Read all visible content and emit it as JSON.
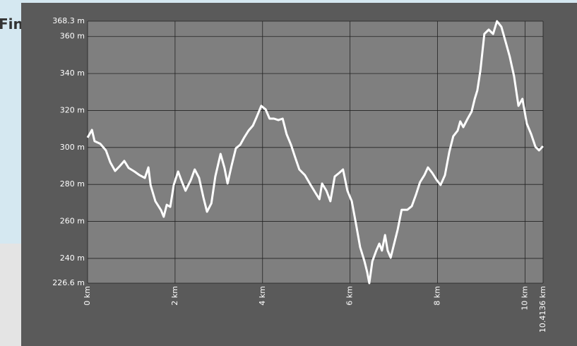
{
  "map_label": "Fin",
  "chart_data": {
    "type": "line",
    "color": "#ffffff",
    "grid": true,
    "x": [
      0,
      0.1,
      0.16,
      0.29,
      0.42,
      0.52,
      0.63,
      0.74,
      0.84,
      0.94,
      1.07,
      1.19,
      1.31,
      1.39,
      1.44,
      1.55,
      1.68,
      1.74,
      1.81,
      1.89,
      1.97,
      2.07,
      2.16,
      2.24,
      2.36,
      2.45,
      2.55,
      2.65,
      2.73,
      2.83,
      2.92,
      3.04,
      3.13,
      3.2,
      3.29,
      3.39,
      3.49,
      3.58,
      3.68,
      3.78,
      3.87,
      3.97,
      4.07,
      4.16,
      4.26,
      4.36,
      4.46,
      4.55,
      4.65,
      4.74,
      4.84,
      4.97,
      5.1,
      5.23,
      5.3,
      5.36,
      5.46,
      5.55,
      5.65,
      5.75,
      5.84,
      5.94,
      6.04,
      6.13,
      6.23,
      6.33,
      6.39,
      6.44,
      6.51,
      6.6,
      6.67,
      6.73,
      6.8,
      6.86,
      6.93,
      6.99,
      7.09,
      7.18,
      7.31,
      7.41,
      7.51,
      7.6,
      7.7,
      7.78,
      7.88,
      7.98,
      8.07,
      8.17,
      8.27,
      8.36,
      8.46,
      8.52,
      8.59,
      8.69,
      8.78,
      8.85,
      8.91,
      8.98,
      9.07,
      9.17,
      9.27,
      9.36,
      9.46,
      9.56,
      9.65,
      9.75,
      9.85,
      9.94,
      10.04,
      10.14,
      10.24,
      10.32,
      10.41
    ],
    "values": [
      305.3,
      309.5,
      303.4,
      302,
      298.4,
      291.9,
      287.3,
      290,
      292.7,
      288.9,
      287,
      285,
      283.5,
      289.2,
      279.7,
      270.9,
      266,
      262.5,
      269,
      267.9,
      279.7,
      287,
      281.2,
      276.6,
      282.4,
      288.1,
      283.5,
      272.8,
      265.2,
      269.8,
      284.3,
      296.5,
      288.9,
      280.5,
      290,
      299.6,
      301.5,
      305.3,
      309.1,
      311.8,
      316.7,
      322.5,
      320.6,
      315.6,
      315.6,
      314.8,
      315.6,
      307.2,
      301.5,
      295,
      288.1,
      285,
      279.7,
      274.7,
      272,
      280.5,
      276.6,
      270.9,
      284.3,
      286.2,
      288.1,
      276.6,
      270.9,
      259.4,
      246.1,
      238.4,
      232.7,
      226.6,
      238.4,
      244.2,
      248,
      244.2,
      252.6,
      244.2,
      240.4,
      246.1,
      255.6,
      266.3,
      266.3,
      268.2,
      274.7,
      281.2,
      285,
      289.2,
      286.2,
      282.4,
      279.7,
      285,
      297.6,
      306.1,
      309.1,
      314.1,
      311,
      315.6,
      319.4,
      326.3,
      330.9,
      341.6,
      361.4,
      363.7,
      361.4,
      368.3,
      365.3,
      356.9,
      349.2,
      338.5,
      322.5,
      326.3,
      312.9,
      307.2,
      300.3,
      298.4,
      300.7
    ],
    "xlim": [
      0,
      10.4136
    ],
    "xticks": [
      {
        "value": 0,
        "label": "0 km"
      },
      {
        "value": 2,
        "label": "2 km"
      },
      {
        "value": 4,
        "label": "4 km"
      },
      {
        "value": 6,
        "label": "6 km"
      },
      {
        "value": 8,
        "label": "8 km"
      },
      {
        "value": 10,
        "label": "10 km"
      },
      {
        "value": 10.4136,
        "label": "10.4136 km"
      }
    ],
    "ylim": [
      226.6,
      368.3
    ],
    "yticks": [
      {
        "value": 226.6,
        "label": "226.6 m"
      },
      {
        "value": 240,
        "label": "240 m"
      },
      {
        "value": 260,
        "label": "260 m"
      },
      {
        "value": 280,
        "label": "280 m"
      },
      {
        "value": 300,
        "label": "300 m"
      },
      {
        "value": 320,
        "label": "320 m"
      },
      {
        "value": 340,
        "label": "340 m"
      },
      {
        "value": 360,
        "label": "360 m"
      },
      {
        "value": 368.3,
        "label": "368.3 m"
      }
    ]
  }
}
